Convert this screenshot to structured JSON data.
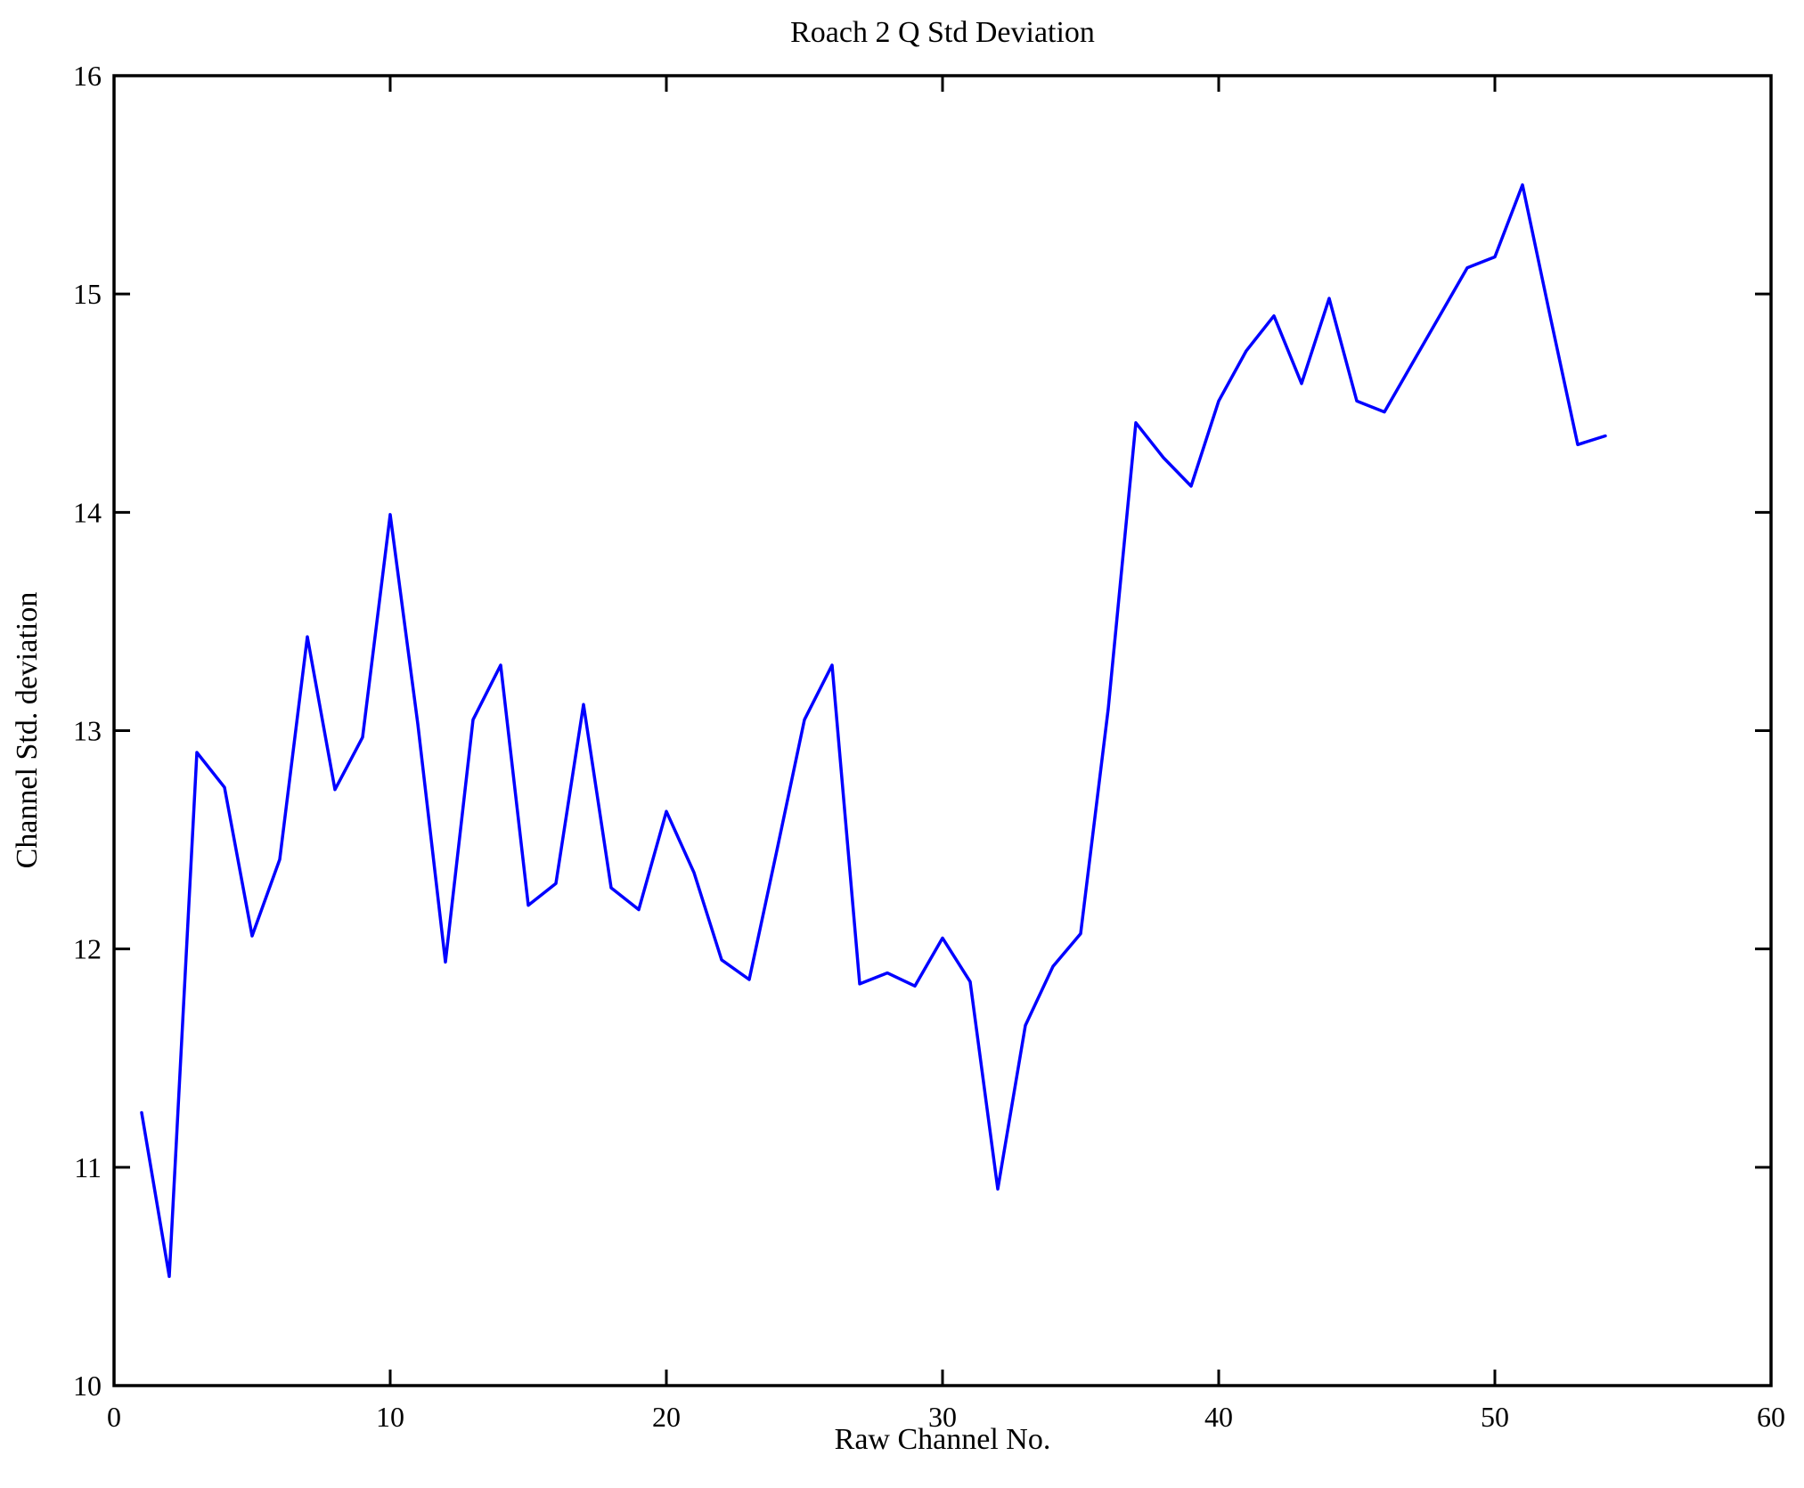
{
  "chart_data": {
    "type": "line",
    "title": "Roach 2 Q Std Deviation",
    "xlabel": "Raw Channel No.",
    "ylabel": "Channel Std. deviation",
    "xlim": [
      0,
      60
    ],
    "ylim": [
      10,
      16
    ],
    "xticks": [
      0,
      10,
      20,
      30,
      40,
      50,
      60
    ],
    "yticks": [
      10,
      11,
      12,
      13,
      14,
      15,
      16
    ],
    "grid": false,
    "legend": null,
    "line_color": "#0000ff",
    "axis_color": "#000000",
    "x": [
      1,
      2,
      3,
      4,
      5,
      6,
      7,
      8,
      9,
      10,
      11,
      12,
      13,
      14,
      15,
      16,
      17,
      18,
      19,
      20,
      21,
      22,
      23,
      24,
      25,
      26,
      27,
      28,
      29,
      30,
      31,
      32,
      33,
      34,
      35,
      36,
      37,
      38,
      39,
      40,
      41,
      42,
      43,
      44,
      45,
      46,
      47,
      48,
      49,
      50,
      51,
      52,
      53,
      54
    ],
    "y": [
      11.25,
      10.5,
      12.9,
      12.74,
      12.06,
      12.41,
      13.43,
      12.73,
      12.97,
      13.99,
      13.03,
      11.94,
      13.05,
      13.3,
      12.2,
      12.3,
      13.12,
      12.28,
      12.18,
      12.63,
      12.35,
      11.95,
      11.86,
      12.45,
      13.05,
      13.3,
      11.84,
      11.89,
      11.83,
      12.05,
      11.85,
      10.9,
      11.65,
      11.92,
      12.07,
      13.1,
      14.41,
      14.25,
      14.12,
      14.51,
      14.74,
      14.9,
      14.59,
      14.98,
      14.51,
      14.46,
      14.68,
      14.9,
      15.12,
      15.17,
      15.5,
      14.9,
      14.31,
      14.35
    ]
  }
}
